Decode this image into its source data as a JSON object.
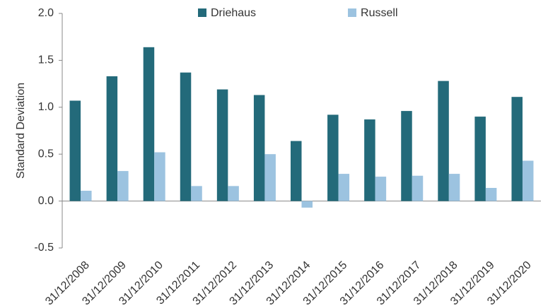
{
  "chart_data": {
    "type": "bar",
    "ylabel": "Standard Deviation",
    "categories": [
      "31/12/2008",
      "31/12/2009",
      "31/12/2010",
      "31/12/2011",
      "31/12/2012",
      "31/12/2013",
      "31/12/2014",
      "31/12/2015",
      "31/12/2016",
      "31/12/2017",
      "31/12/2018",
      "31/12/2019",
      "31/12/2020"
    ],
    "series": [
      {
        "name": "Driehaus",
        "color": "#236a7a",
        "values": [
          1.07,
          1.33,
          1.64,
          1.37,
          1.19,
          1.13,
          0.64,
          0.92,
          0.87,
          0.96,
          1.28,
          0.9,
          1.11
        ]
      },
      {
        "name": "Russell",
        "color": "#9cc3e0",
        "values": [
          0.11,
          0.32,
          0.52,
          0.16,
          0.16,
          0.5,
          -0.07,
          0.29,
          0.26,
          0.27,
          0.29,
          0.14,
          0.43
        ]
      }
    ],
    "ylim": [
      -0.5,
      2.0
    ],
    "yticks": [
      -0.5,
      {
        "value": 0,
        "label": "0.0"
      },
      0.5,
      {
        "value": 1,
        "label": "1.0"
      },
      1.5,
      {
        "value": 2,
        "label": "2.0"
      }
    ],
    "grid": false,
    "legend": "top"
  }
}
